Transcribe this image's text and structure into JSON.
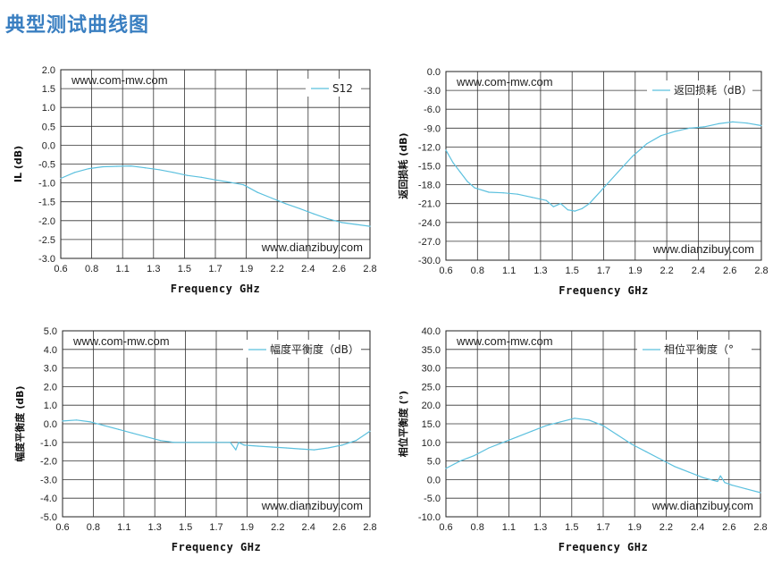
{
  "page": {
    "title": "典型测试曲线图"
  },
  "chart_data": [
    {
      "type": "line",
      "xlabel": "Frequency GHz",
      "ylabel": "IL (dB)",
      "xlim": [
        0.6,
        2.8
      ],
      "ylim": [
        -3.0,
        2.0
      ],
      "xticks": [
        "0.6",
        "0.8",
        "1.1",
        "1.3",
        "1.5",
        "1.7",
        "1.9",
        "2.2",
        "2.4",
        "2.6",
        "2.8"
      ],
      "yticks": [
        "2.0",
        "1.5",
        "1.0",
        "0.5",
        "0.0",
        "-0.5",
        "-1.0",
        "-1.5",
        "-2.0",
        "-2.5",
        "-3.0"
      ],
      "watermark_top": "www.com-mw.com",
      "watermark_bottom": "www.dianzibuy.com",
      "legend_position": "top-right",
      "grid": true,
      "color": "#5bc0de",
      "series": [
        {
          "name": "S12",
          "x": [
            0.6,
            0.7,
            0.8,
            0.9,
            1.0,
            1.1,
            1.2,
            1.3,
            1.4,
            1.5,
            1.6,
            1.7,
            1.8,
            1.9,
            2.0,
            2.1,
            2.2,
            2.3,
            2.4,
            2.5,
            2.6,
            2.7,
            2.8
          ],
          "y": [
            -0.88,
            -0.72,
            -0.62,
            -0.57,
            -0.56,
            -0.55,
            -0.6,
            -0.65,
            -0.72,
            -0.8,
            -0.85,
            -0.92,
            -0.98,
            -1.05,
            -1.25,
            -1.4,
            -1.55,
            -1.68,
            -1.82,
            -1.95,
            -2.05,
            -2.1,
            -2.15
          ]
        }
      ]
    },
    {
      "type": "line",
      "xlabel": "Frequency GHz",
      "ylabel": "返回损耗 (dB)",
      "xlim": [
        0.6,
        2.8
      ],
      "ylim": [
        -30.0,
        0.0
      ],
      "xticks": [
        "0.6",
        "0.8",
        "1.1",
        "1.3",
        "1.5",
        "1.7",
        "1.9",
        "2.2",
        "2.4",
        "2.6",
        "2.8"
      ],
      "yticks": [
        "0.0",
        "-3.0",
        "-6.0",
        "-9.0",
        "-12.0",
        "-15.0",
        "-18.0",
        "-21.0",
        "-24.0",
        "-27.0",
        "-30.0"
      ],
      "watermark_top": "www.com-mw.com",
      "watermark_bottom": "www.dianzibuy.com",
      "legend_position": "top-right",
      "grid": true,
      "color": "#5bc0de",
      "series": [
        {
          "name": "返回损耗（dB）",
          "x": [
            0.6,
            0.65,
            0.7,
            0.75,
            0.8,
            0.9,
            1.0,
            1.1,
            1.2,
            1.3,
            1.35,
            1.4,
            1.45,
            1.5,
            1.55,
            1.6,
            1.7,
            1.8,
            1.9,
            2.0,
            2.1,
            2.2,
            2.3,
            2.4,
            2.5,
            2.6,
            2.7,
            2.8
          ],
          "y": [
            -12.5,
            -14.5,
            -16.0,
            -17.5,
            -18.5,
            -19.2,
            -19.3,
            -19.5,
            -20.0,
            -20.5,
            -21.5,
            -21.0,
            -22.0,
            -22.2,
            -21.8,
            -21.0,
            -18.5,
            -16.0,
            -13.5,
            -11.5,
            -10.2,
            -9.5,
            -9.0,
            -8.8,
            -8.3,
            -8.0,
            -8.2,
            -8.6
          ]
        }
      ]
    },
    {
      "type": "line",
      "xlabel": "Frequency GHz",
      "ylabel": "幅度平衡度 (dB)",
      "xlim": [
        0.6,
        2.8
      ],
      "ylim": [
        -5.0,
        5.0
      ],
      "xticks": [
        "0.6",
        "0.8",
        "1.1",
        "1.3",
        "1.5",
        "1.7",
        "1.9",
        "2.2",
        "2.4",
        "2.6",
        "2.8"
      ],
      "yticks": [
        "5.0",
        "4.0",
        "3.0",
        "2.0",
        "1.0",
        "0.0",
        "-1.0",
        "-2.0",
        "-3.0",
        "-4.0",
        "-5.0"
      ],
      "watermark_top": "www.com-mw.com",
      "watermark_bottom": "www.dianzibuy.com",
      "legend_position": "top-right",
      "grid": true,
      "color": "#5bc0de",
      "series": [
        {
          "name": "幅度平衡度（dB）",
          "x": [
            0.6,
            0.7,
            0.8,
            0.9,
            1.0,
            1.1,
            1.2,
            1.3,
            1.4,
            1.5,
            1.6,
            1.7,
            1.8,
            1.84,
            1.86,
            1.9,
            2.0,
            2.1,
            2.2,
            2.3,
            2.4,
            2.5,
            2.6,
            2.7,
            2.8
          ],
          "y": [
            0.15,
            0.2,
            0.1,
            -0.1,
            -0.3,
            -0.5,
            -0.7,
            -0.9,
            -1.0,
            -1.0,
            -1.0,
            -1.0,
            -1.0,
            -1.4,
            -1.0,
            -1.15,
            -1.2,
            -1.25,
            -1.3,
            -1.35,
            -1.4,
            -1.3,
            -1.15,
            -0.9,
            -0.4
          ]
        }
      ]
    },
    {
      "type": "line",
      "xlabel": "Frequency GHz",
      "ylabel": "相位平衡度 (°)",
      "xlim": [
        0.6,
        2.8
      ],
      "ylim": [
        -10.0,
        40.0
      ],
      "xticks": [
        "0.6",
        "0.8",
        "1.1",
        "1.3",
        "1.5",
        "1.7",
        "1.9",
        "2.2",
        "2.4",
        "2.6",
        "2.8"
      ],
      "yticks": [
        "40.0",
        "35.0",
        "30.0",
        "25.0",
        "20.0",
        "15.0",
        "10.0",
        "5.0",
        "0.0",
        "-5.0",
        "-10.0"
      ],
      "watermark_top": "www.com-mw.com",
      "watermark_bottom": "www.dianzibuy.com",
      "legend_position": "top-right",
      "grid": true,
      "color": "#5bc0de",
      "series": [
        {
          "name": "相位平衡度（°",
          "x": [
            0.6,
            0.7,
            0.8,
            0.9,
            1.0,
            1.1,
            1.2,
            1.3,
            1.4,
            1.5,
            1.6,
            1.7,
            1.8,
            1.9,
            2.0,
            2.1,
            2.2,
            2.3,
            2.4,
            2.5,
            2.52,
            2.55,
            2.6,
            2.7,
            2.8
          ],
          "y": [
            3.0,
            5.0,
            6.5,
            8.5,
            10.0,
            11.5,
            13.0,
            14.5,
            15.5,
            16.5,
            16.0,
            14.5,
            12.0,
            9.5,
            7.5,
            5.5,
            3.5,
            2.0,
            0.5,
            -0.5,
            1.0,
            -0.8,
            -1.5,
            -2.5,
            -3.5
          ]
        }
      ]
    }
  ]
}
